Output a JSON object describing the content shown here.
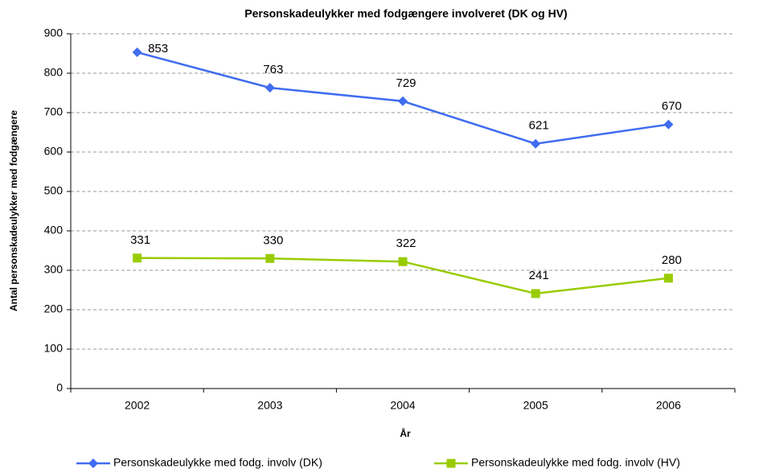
{
  "chart_data": {
    "type": "line",
    "title": "Personskadeulykker med fodgængere involveret (DK og HV)",
    "x_label": "År",
    "y_label": "Antal personskadeulykker med fodgængere",
    "categories": [
      "2002",
      "2003",
      "2004",
      "2005",
      "2006"
    ],
    "series": [
      {
        "name": "Personskadeulykke med fodg. involv (DK)",
        "color": "#3f6cf0",
        "marker": "diamond",
        "values": [
          853,
          763,
          729,
          621,
          670
        ]
      },
      {
        "name": "Personskadeulykke med fodg. involv (HV)",
        "color": "#99cc00",
        "marker": "square",
        "values": [
          331,
          330,
          322,
          241,
          280
        ]
      }
    ],
    "ylim": [
      0,
      900
    ],
    "yticks": [
      0,
      100,
      200,
      300,
      400,
      500,
      600,
      700,
      800,
      900
    ],
    "grid": true,
    "legend": "bottom"
  }
}
